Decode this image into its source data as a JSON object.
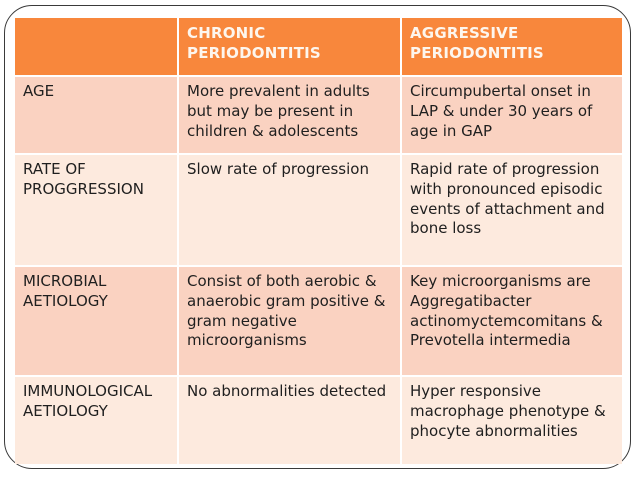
{
  "slide": {
    "type": "presentation-slide-comparison-table"
  },
  "colors": {
    "header-bg": "#f8873c",
    "header-text": "#fdf6ee",
    "row-odd": "#fad2c1",
    "row-even": "#fdeade",
    "separator": "#ffffff",
    "text": "#1f1f1f",
    "border": "#3a3a3a",
    "page-bg": "#ffffff"
  },
  "table": {
    "headers": [
      {
        "label": ""
      },
      {
        "label": "CHRONIC PERIODONTITIS"
      },
      {
        "label": "AGGRESSIVE PERIODONTITIS"
      }
    ],
    "rows": [
      {
        "label": "AGE",
        "chronic": "More prevalent in adults but may be present in children & adolescents",
        "aggressive": "Circumpubertal onset in LAP & under 30 years of age in GAP"
      },
      {
        "label": "RATE OF PROGGRESSION",
        "chronic": "Slow rate of progression",
        "aggressive": "Rapid rate of progression with pronounced episodic events of attachment and bone loss"
      },
      {
        "label": "MICROBIAL AETIOLOGY",
        "chronic": "Consist of both aerobic & anaerobic gram positive & gram negative microorganisms",
        "aggressive": "Key microorganisms are Aggregatibacter actinomyctemcomitans & Prevotella intermedia"
      },
      {
        "label": "IMMUNOLOGICAL AETIOLOGY",
        "chronic": "No abnormalities detected",
        "aggressive": "Hyper responsive macrophage phenotype & phocyte abnormalities"
      }
    ]
  }
}
